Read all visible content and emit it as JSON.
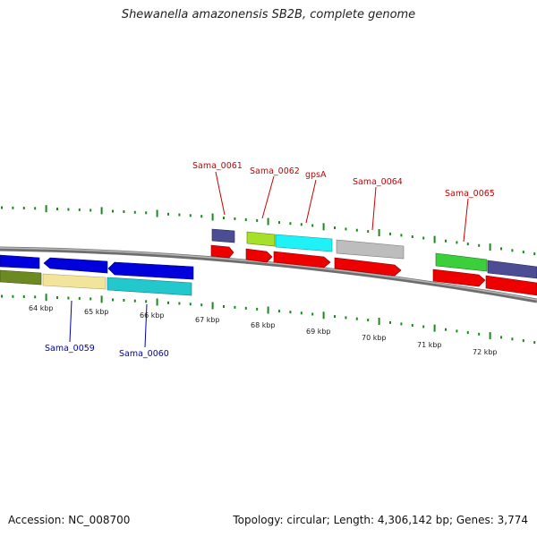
{
  "title": "Shewanella amazonensis SB2B, complete genome",
  "footer": {
    "accession": "Accession: NC_008700",
    "info": "Topology: circular; Length: 4,306,142 bp; Genes: 3,774"
  },
  "colors": {
    "backbone": "#8a8a8a",
    "tick": "#1a8a1a",
    "cds": "#ee0000",
    "label_red": "#cc0000",
    "label_blue": "#0000aa"
  },
  "kbp_labels": [
    "64 kbp",
    "65 kbp",
    "66 kbp",
    "67 kbp",
    "68 kbp",
    "69 kbp",
    "70 kbp",
    "71 kbp",
    "72 kbp"
  ],
  "gene_labels": [
    {
      "text": "Sama_0061",
      "color": "red"
    },
    {
      "text": "Sama_0062",
      "color": "red"
    },
    {
      "text": "gpsA",
      "color": "red"
    },
    {
      "text": "Sama_0064",
      "color": "red"
    },
    {
      "text": "Sama_0065",
      "color": "red"
    },
    {
      "text": "Sama_0059",
      "color": "blue"
    },
    {
      "text": "Sama_0060",
      "color": "blue"
    }
  ]
}
